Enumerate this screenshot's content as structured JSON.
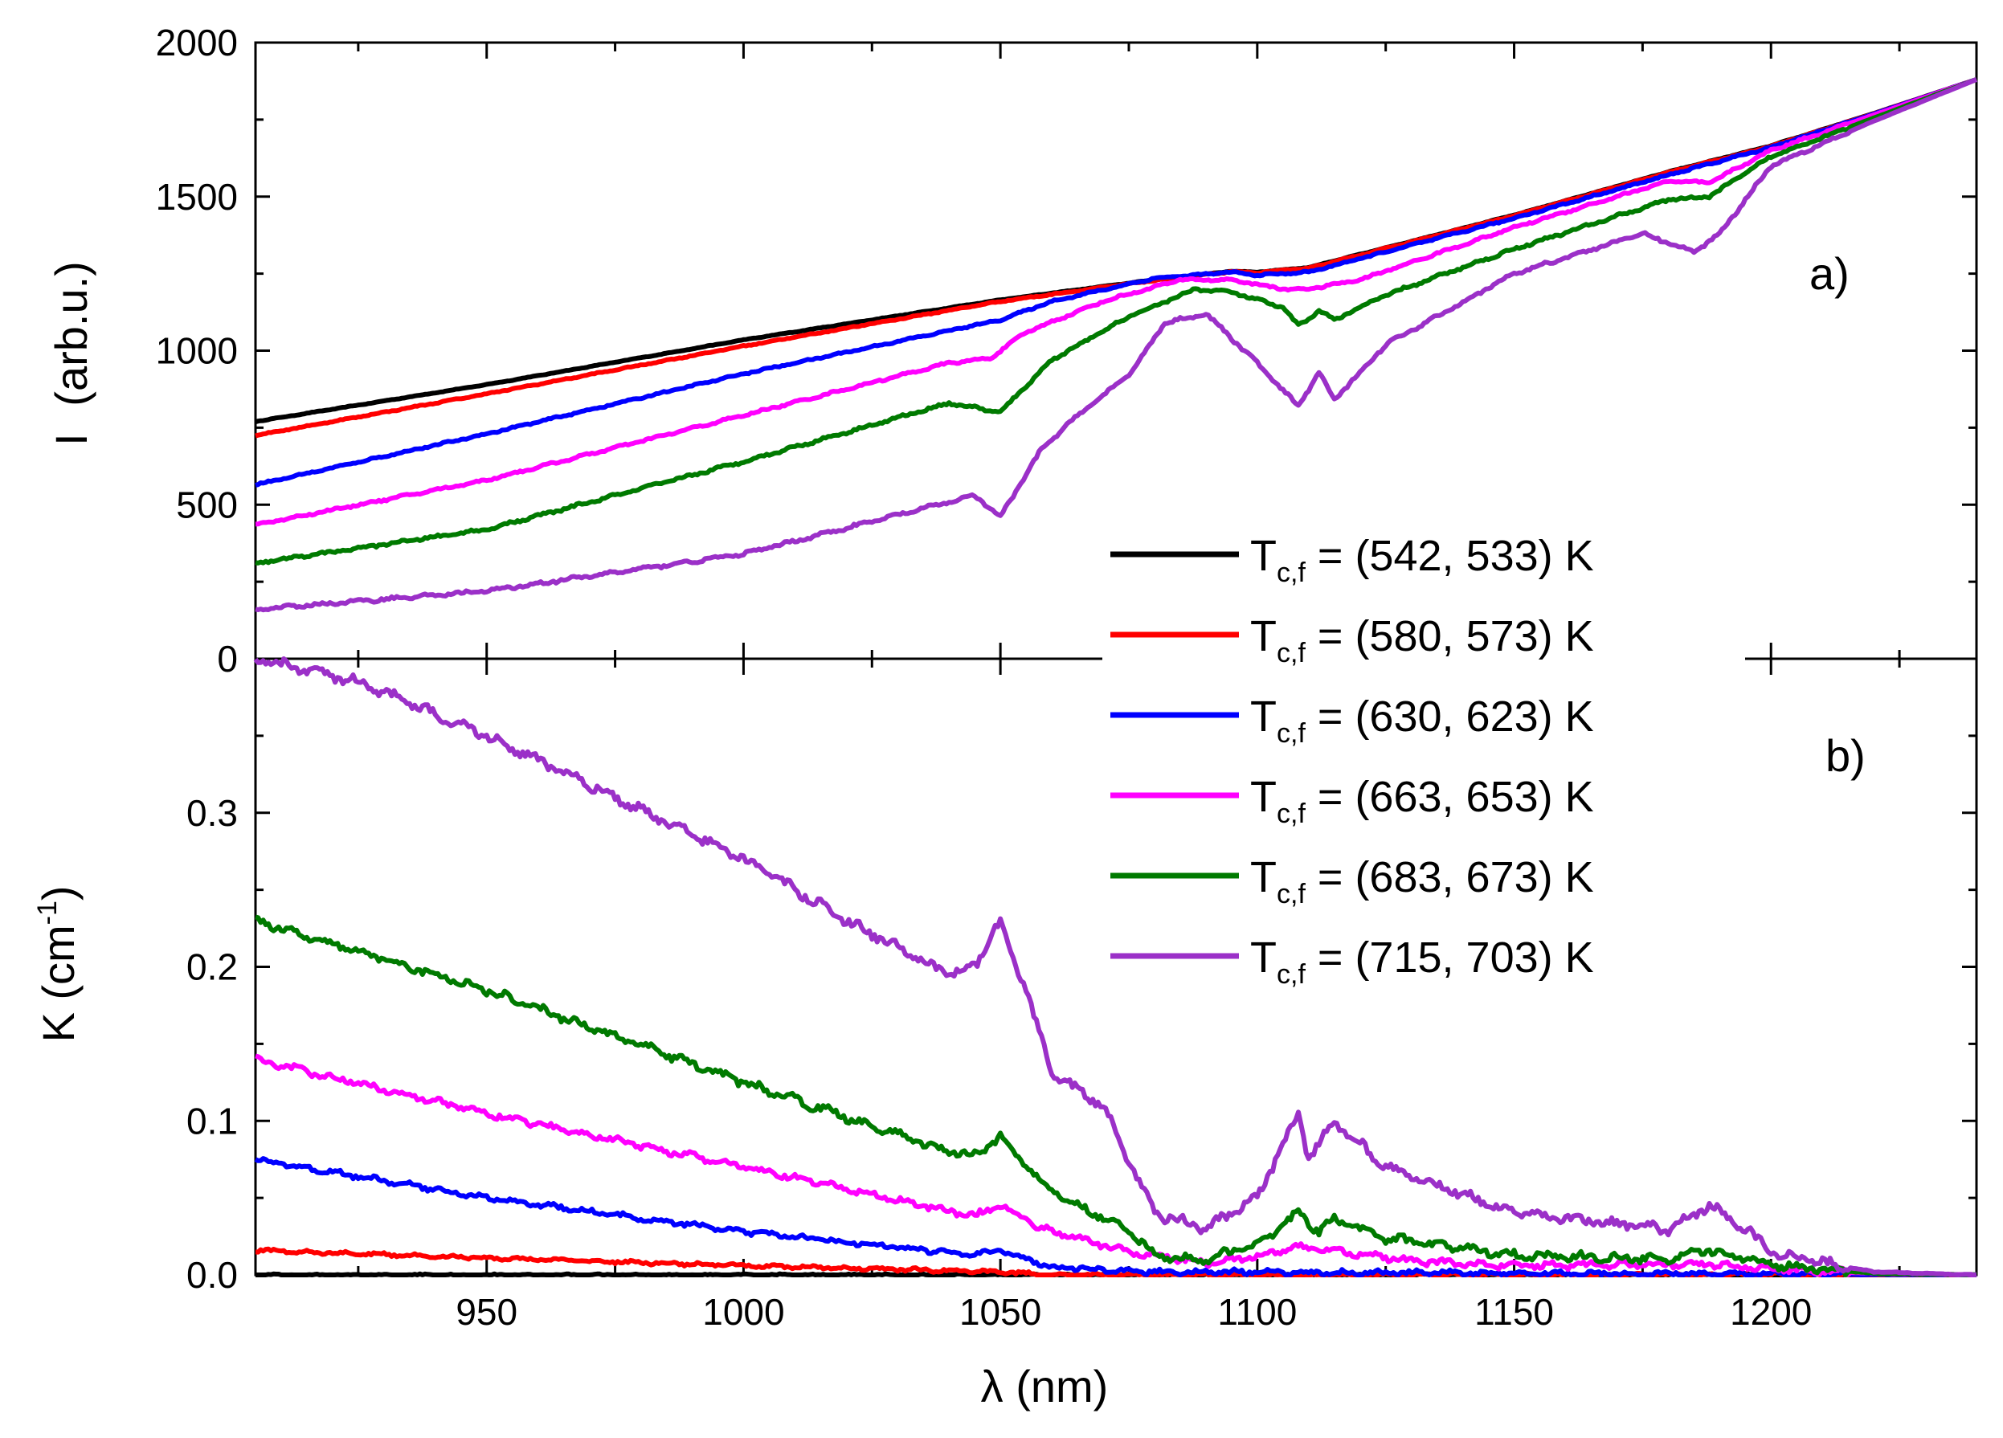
{
  "chart_data": [
    {
      "panel": "a",
      "type": "line",
      "panel_label": "a)",
      "title": "",
      "xlabel": "",
      "ylabel": "I (arb.u.)",
      "ylabel_symbol": "I",
      "ylabel_unit": "(arb.u.)",
      "xlim": [
        905,
        1240
      ],
      "ylim": [
        0,
        2000
      ],
      "yticks": [
        0,
        500,
        1000,
        1500,
        2000
      ],
      "ytick_labels": [
        "0",
        "500",
        "1000",
        "1500",
        "2000"
      ],
      "grid": false,
      "legend": "inside, lower right",
      "series": [
        {
          "name": "Tc,f = (542, 533) K",
          "color": "#000000",
          "x": [
            905,
            950,
            1000,
            1050,
            1080,
            1095,
            1100,
            1110,
            1150,
            1180,
            1200,
            1220,
            1240
          ],
          "y": [
            770,
            890,
            1035,
            1165,
            1230,
            1258,
            1255,
            1270,
            1440,
            1580,
            1665,
            1770,
            1880
          ]
        },
        {
          "name": "Tc,f = (580, 573) K",
          "color": "#ff0000",
          "x": [
            905,
            950,
            1000,
            1050,
            1080,
            1095,
            1100,
            1110,
            1150,
            1180,
            1200,
            1220,
            1240
          ],
          "y": [
            725,
            860,
            1015,
            1160,
            1228,
            1256,
            1253,
            1268,
            1438,
            1578,
            1663,
            1769,
            1880
          ]
        },
        {
          "name": "Tc,f = (630, 623) K",
          "color": "#0000ff",
          "x": [
            905,
            950,
            1000,
            1050,
            1060,
            1080,
            1095,
            1100,
            1110,
            1150,
            1180,
            1200,
            1220,
            1240
          ],
          "y": [
            565,
            730,
            925,
            1100,
            1160,
            1235,
            1255,
            1245,
            1255,
            1430,
            1570,
            1660,
            1768,
            1880
          ]
        },
        {
          "name": "Tc,f = (663, 653) K",
          "color": "#ff00ff",
          "x": [
            905,
            950,
            1000,
            1040,
            1048,
            1055,
            1070,
            1085,
            1095,
            1105,
            1110,
            1120,
            1150,
            1180,
            1188,
            1200,
            1220,
            1240
          ],
          "y": [
            435,
            580,
            790,
            960,
            975,
            1060,
            1160,
            1230,
            1230,
            1200,
            1200,
            1230,
            1400,
            1550,
            1545,
            1650,
            1765,
            1880
          ]
        },
        {
          "name": "Tc,f = (683, 673) K",
          "color": "#007a00",
          "x": [
            905,
            950,
            1000,
            1040,
            1050,
            1060,
            1075,
            1088,
            1095,
            1105,
            1108,
            1112,
            1115,
            1125,
            1150,
            1180,
            1188,
            1200,
            1220,
            1240
          ],
          "y": [
            310,
            420,
            640,
            830,
            800,
            970,
            1110,
            1200,
            1190,
            1140,
            1080,
            1130,
            1100,
            1180,
            1330,
            1490,
            1500,
            1630,
            1755,
            1880
          ]
        },
        {
          "name": "Tc,f = (715, 703) K",
          "color": "#9b30c8",
          "x": [
            905,
            950,
            1000,
            1045,
            1050,
            1058,
            1065,
            1075,
            1082,
            1090,
            1095,
            1100,
            1105,
            1108,
            1112,
            1115,
            1125,
            1150,
            1175,
            1185,
            1190,
            1200,
            1220,
            1240
          ],
          "y": [
            160,
            220,
            340,
            530,
            460,
            680,
            790,
            920,
            1090,
            1120,
            1040,
            960,
            870,
            820,
            930,
            840,
            1020,
            1250,
            1380,
            1320,
            1380,
            1600,
            1745,
            1880
          ]
        }
      ]
    },
    {
      "panel": "b",
      "type": "line",
      "panel_label": "b)",
      "title": "",
      "xlabel": "λ (nm)",
      "ylabel": "K (cm-1)",
      "ylabel_main": "K (cm",
      "ylabel_sup": "-1",
      "ylabel_close": ")",
      "xlim": [
        905,
        1240
      ],
      "ylim": [
        0,
        0.4
      ],
      "xticks": [
        950,
        1000,
        1050,
        1100,
        1150,
        1200
      ],
      "xtick_labels": [
        "950",
        "1000",
        "1050",
        "1100",
        "1150",
        "1200"
      ],
      "yticks": [
        0.0,
        0.1,
        0.2,
        0.3
      ],
      "ytick_labels": [
        "0.0",
        "0.1",
        "0.2",
        "0.3"
      ],
      "grid": false,
      "series": [
        {
          "name": "Tc,f = (542, 533) K",
          "color": "#000000",
          "x": [
            905,
            1000,
            1100,
            1240
          ],
          "y": [
            0,
            0,
            0,
            0
          ]
        },
        {
          "name": "Tc,f = (580, 573) K",
          "color": "#ff0000",
          "x": [
            905,
            950,
            1000,
            1050,
            1060,
            1240
          ],
          "y": [
            0.016,
            0.011,
            0.006,
            0.002,
            0,
            0
          ]
        },
        {
          "name": "Tc,f = (630, 623) K",
          "color": "#0000ff",
          "x": [
            905,
            950,
            1000,
            1045,
            1050,
            1060,
            1080,
            1240
          ],
          "y": [
            0.075,
            0.05,
            0.028,
            0.013,
            0.016,
            0.005,
            0.002,
            0
          ]
        },
        {
          "name": "Tc,f = (663, 653) K",
          "color": "#ff00ff",
          "x": [
            905,
            950,
            1000,
            1045,
            1050,
            1058,
            1075,
            1090,
            1100,
            1108,
            1115,
            1130,
            1150,
            1188,
            1200,
            1220,
            1240
          ],
          "y": [
            0.14,
            0.105,
            0.07,
            0.038,
            0.046,
            0.03,
            0.015,
            0.008,
            0.012,
            0.018,
            0.016,
            0.009,
            0.006,
            0.007,
            0.004,
            0.001,
            0
          ]
        },
        {
          "name": "Tc,f = (683, 673) K",
          "color": "#007a00",
          "x": [
            905,
            950,
            1000,
            1040,
            1045,
            1050,
            1058,
            1065,
            1075,
            1080,
            1090,
            1100,
            1108,
            1112,
            1115,
            1125,
            1150,
            1180,
            1188,
            1200,
            1220,
            1240
          ],
          "y": [
            0.23,
            0.185,
            0.125,
            0.08,
            0.078,
            0.09,
            0.06,
            0.045,
            0.03,
            0.012,
            0.01,
            0.02,
            0.04,
            0.028,
            0.036,
            0.024,
            0.013,
            0.01,
            0.016,
            0.007,
            0.001,
            0
          ]
        },
        {
          "name": "Tc,f = (715, 703) K",
          "color": "#9b30c8",
          "x": [
            905,
            925,
            950,
            975,
            1000,
            1020,
            1040,
            1045,
            1050,
            1055,
            1060,
            1070,
            1080,
            1085,
            1090,
            1095,
            1100,
            1105,
            1108,
            1110,
            1115,
            1125,
            1150,
            1180,
            1188,
            1195,
            1200,
            1210,
            1220,
            1240
          ],
          "y": [
            0.4,
            0.385,
            0.35,
            0.31,
            0.27,
            0.23,
            0.195,
            0.2,
            0.23,
            0.185,
            0.13,
            0.11,
            0.04,
            0.035,
            0.03,
            0.04,
            0.05,
            0.085,
            0.105,
            0.075,
            0.1,
            0.07,
            0.04,
            0.03,
            0.045,
            0.03,
            0.015,
            0.008,
            0.002,
            0
          ]
        }
      ]
    }
  ],
  "legend": {
    "entries": [
      {
        "symbol": "T",
        "sub": "c,f",
        "rest": " = (542, 533) K",
        "color": "#000000"
      },
      {
        "symbol": "T",
        "sub": "c,f",
        "rest": " = (580, 573) K",
        "color": "#ff0000"
      },
      {
        "symbol": "T",
        "sub": "c,f",
        "rest": " = (630, 623) K",
        "color": "#0000ff"
      },
      {
        "symbol": "T",
        "sub": "c,f",
        "rest": " = (663, 653) K",
        "color": "#ff00ff"
      },
      {
        "symbol": "T",
        "sub": "c,f",
        "rest": " = (683, 673) K",
        "color": "#007a00"
      },
      {
        "symbol": "T",
        "sub": "c,f",
        "rest": " = (715, 703) K",
        "color": "#9b30c8"
      }
    ]
  }
}
